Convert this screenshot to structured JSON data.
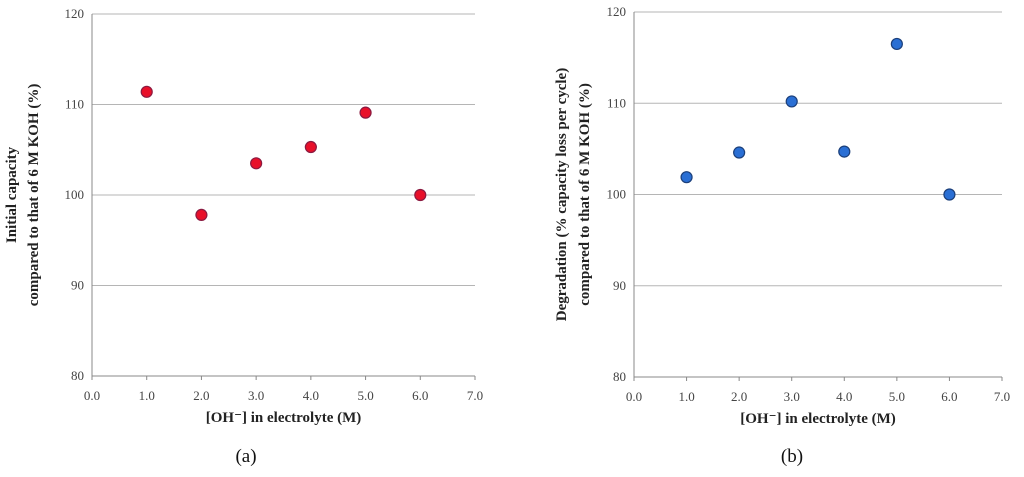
{
  "chart_data": [
    {
      "type": "scatter",
      "panel": "a",
      "caption_letter": "a",
      "x": [
        1.0,
        2.0,
        3.0,
        4.0,
        5.0,
        6.0
      ],
      "y": [
        111.4,
        97.8,
        103.5,
        105.3,
        109.1,
        100.0
      ],
      "xlim": [
        0.0,
        7.0
      ],
      "ylim": [
        80,
        120
      ],
      "xticks": [
        "0.0",
        "1.0",
        "2.0",
        "3.0",
        "4.0",
        "5.0",
        "6.0",
        "7.0"
      ],
      "yticks": [
        "80",
        "90",
        "100",
        "110",
        "120"
      ],
      "xlabel": "[OH⁻] in electrolyte (M)",
      "ylabel_lines": [
        "Initial capacity",
        "compared to that of 6 M KOH (%)"
      ],
      "marker_color": "#e8102a",
      "marker_edge": "#8a1a40",
      "grid": "horizontal"
    },
    {
      "type": "scatter",
      "panel": "b",
      "caption_letter": "b",
      "x": [
        1.0,
        2.0,
        3.0,
        4.0,
        5.0,
        6.0
      ],
      "y": [
        101.9,
        104.6,
        110.2,
        104.7,
        116.5,
        100.0
      ],
      "xlim": [
        0.0,
        7.0
      ],
      "ylim": [
        80,
        120
      ],
      "xticks": [
        "0.0",
        "1.0",
        "2.0",
        "3.0",
        "4.0",
        "5.0",
        "6.0",
        "7.0"
      ],
      "yticks": [
        "80",
        "90",
        "100",
        "110",
        "120"
      ],
      "xlabel": "[OH⁻] in electrolyte (M)",
      "ylabel_lines": [
        "Degradation (% capacity loss per cycle)",
        "compared to that of 6 M KOH (%)"
      ],
      "marker_color": "#2a6fd4",
      "marker_edge": "#1b3f7a",
      "grid": "horizontal"
    }
  ],
  "captions": {
    "left": "(a)",
    "right": "(b)"
  }
}
